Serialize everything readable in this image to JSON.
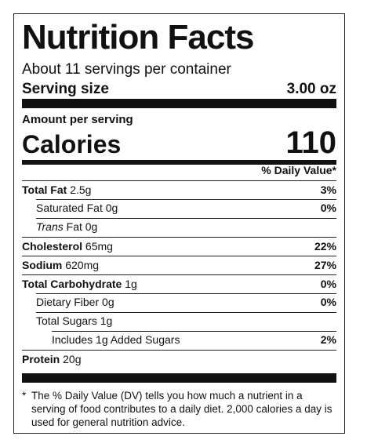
{
  "title": "Nutrition Facts",
  "servings": "About 11 servings per container",
  "serving_size": {
    "label": "Serving size",
    "value": "3.00 oz"
  },
  "amount_per_serving": "Amount per serving",
  "calories": {
    "label": "Calories",
    "value": "110"
  },
  "daily_value_header": "% Daily Value*",
  "rows": {
    "total_fat": {
      "label": "Total Fat",
      "amount": "2.5g",
      "pct": "3%"
    },
    "saturated_fat": {
      "label": "Saturated Fat",
      "amount": "0g",
      "pct": "0%"
    },
    "trans_fat": {
      "label": "Trans",
      "label2": "Fat",
      "amount": "0g"
    },
    "cholesterol": {
      "label": "Cholesterol",
      "amount": "65mg",
      "pct": "22%"
    },
    "sodium": {
      "label": "Sodium",
      "amount": "620mg",
      "pct": "27%"
    },
    "total_carb": {
      "label": "Total Carbohydrate",
      "amount": "1g",
      "pct": "0%"
    },
    "dietary_fiber": {
      "label": "Dietary Fiber",
      "amount": "0g",
      "pct": "0%"
    },
    "total_sugars": {
      "label": "Total Sugars",
      "amount": "1g"
    },
    "added_sugars": {
      "label": "Includes 1g Added Sugars",
      "pct": "2%"
    },
    "protein": {
      "label": "Protein",
      "amount": "20g"
    }
  },
  "footnote": {
    "star": "*",
    "text": "The % Daily Value (DV) tells you how much a nutrient in a serving of food contributes to a daily diet. 2,000 calories a day is used for general nutrition advice."
  }
}
